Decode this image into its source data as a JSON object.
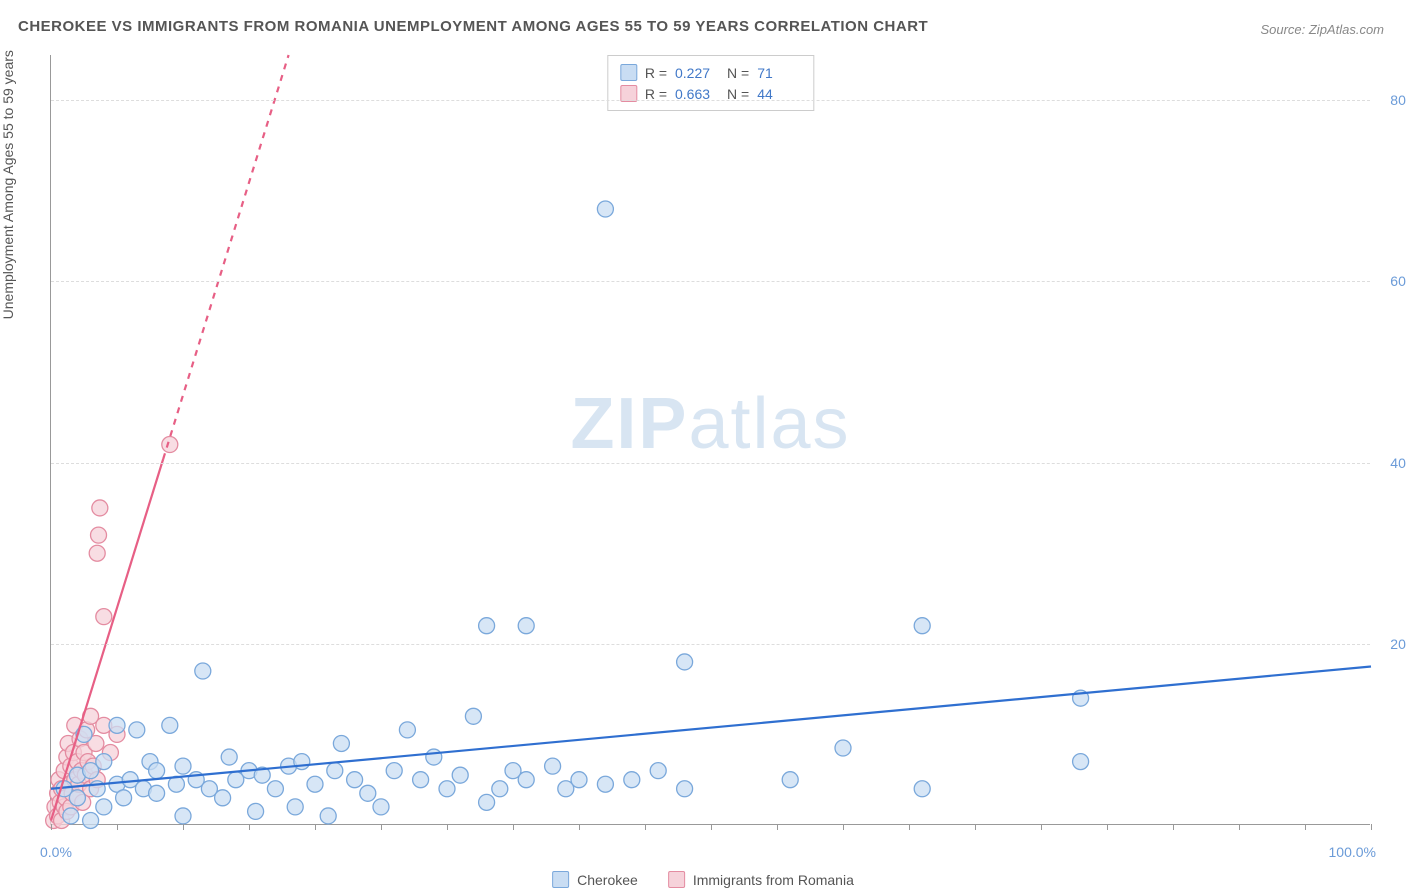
{
  "title": "CHEROKEE VS IMMIGRANTS FROM ROMANIA UNEMPLOYMENT AMONG AGES 55 TO 59 YEARS CORRELATION CHART",
  "source": "Source: ZipAtlas.com",
  "y_axis_label": "Unemployment Among Ages 55 to 59 years",
  "watermark_bold": "ZIP",
  "watermark_light": "atlas",
  "chart": {
    "type": "scatter",
    "xlim": [
      0,
      100
    ],
    "ylim": [
      0,
      85
    ],
    "x_ticks_minor_step": 5,
    "y_gridlines": [
      20,
      40,
      60,
      80
    ],
    "y_tick_labels": [
      "20.0%",
      "40.0%",
      "60.0%",
      "80.0%"
    ],
    "x_tick_labels": {
      "0": "0.0%",
      "100": "100.0%"
    },
    "grid_color": "#dddddd",
    "background_color": "#ffffff",
    "axis_color": "#999999",
    "tick_label_color": "#6b9bd8"
  },
  "series": [
    {
      "name": "Cherokee",
      "marker_color_fill": "#c9ddf3",
      "marker_color_stroke": "#7aa8db",
      "marker_radius": 8,
      "line_color": "#2f6fd0",
      "line_width": 2.2,
      "line_dash_after_x": 100,
      "trend": {
        "x1": 0,
        "y1": 4.0,
        "x2": 100,
        "y2": 17.5
      },
      "stats": {
        "R": "0.227",
        "N": "71"
      },
      "points": [
        [
          1,
          4
        ],
        [
          1.5,
          1
        ],
        [
          2,
          5.5
        ],
        [
          2,
          3
        ],
        [
          2.5,
          10
        ],
        [
          3,
          0.5
        ],
        [
          3,
          6
        ],
        [
          3.5,
          4
        ],
        [
          4,
          2
        ],
        [
          4,
          7
        ],
        [
          5,
          4.5
        ],
        [
          5,
          11
        ],
        [
          5.5,
          3
        ],
        [
          6,
          5
        ],
        [
          6.5,
          10.5
        ],
        [
          7,
          4
        ],
        [
          7.5,
          7
        ],
        [
          8,
          3.5
        ],
        [
          8,
          6
        ],
        [
          9,
          11
        ],
        [
          9.5,
          4.5
        ],
        [
          10,
          1
        ],
        [
          10,
          6.5
        ],
        [
          11,
          5
        ],
        [
          11.5,
          17
        ],
        [
          12,
          4
        ],
        [
          13,
          3
        ],
        [
          13.5,
          7.5
        ],
        [
          14,
          5
        ],
        [
          15,
          6
        ],
        [
          15.5,
          1.5
        ],
        [
          16,
          5.5
        ],
        [
          17,
          4
        ],
        [
          18,
          6.5
        ],
        [
          18.5,
          2
        ],
        [
          19,
          7
        ],
        [
          20,
          4.5
        ],
        [
          21,
          1
        ],
        [
          21.5,
          6
        ],
        [
          22,
          9
        ],
        [
          23,
          5
        ],
        [
          24,
          3.5
        ],
        [
          25,
          2
        ],
        [
          26,
          6
        ],
        [
          27,
          10.5
        ],
        [
          28,
          5
        ],
        [
          29,
          7.5
        ],
        [
          30,
          4
        ],
        [
          31,
          5.5
        ],
        [
          32,
          12
        ],
        [
          33,
          2.5
        ],
        [
          33,
          22
        ],
        [
          34,
          4
        ],
        [
          35,
          6
        ],
        [
          36,
          5
        ],
        [
          36,
          22
        ],
        [
          38,
          6.5
        ],
        [
          39,
          4
        ],
        [
          40,
          5
        ],
        [
          42,
          68
        ],
        [
          42,
          4.5
        ],
        [
          44,
          5
        ],
        [
          46,
          6
        ],
        [
          48,
          18
        ],
        [
          48,
          4
        ],
        [
          56,
          5
        ],
        [
          60,
          8.5
        ],
        [
          66,
          22
        ],
        [
          66,
          4
        ],
        [
          78,
          14
        ],
        [
          78,
          7
        ]
      ]
    },
    {
      "name": "Immigrants from Romania",
      "marker_color_fill": "#f6d2da",
      "marker_color_stroke": "#e48ca1",
      "marker_radius": 8,
      "line_color": "#e75f85",
      "line_width": 2.2,
      "line_dash_after_x": 8.5,
      "trend": {
        "x1": 0,
        "y1": 0.5,
        "x2": 18,
        "y2": 85
      },
      "stats": {
        "R": "0.663",
        "N": "44"
      },
      "points": [
        [
          0.2,
          0.5
        ],
        [
          0.3,
          2
        ],
        [
          0.5,
          1
        ],
        [
          0.5,
          3.5
        ],
        [
          0.6,
          5
        ],
        [
          0.7,
          2.5
        ],
        [
          0.8,
          0.5
        ],
        [
          0.8,
          4
        ],
        [
          1,
          6
        ],
        [
          1,
          2
        ],
        [
          1.1,
          3
        ],
        [
          1.2,
          7.5
        ],
        [
          1.2,
          1.5
        ],
        [
          1.3,
          9
        ],
        [
          1.4,
          4.5
        ],
        [
          1.5,
          2
        ],
        [
          1.5,
          6.5
        ],
        [
          1.6,
          3.5
        ],
        [
          1.7,
          8
        ],
        [
          1.8,
          5
        ],
        [
          1.8,
          11
        ],
        [
          2,
          3
        ],
        [
          2,
          7
        ],
        [
          2.1,
          4.5
        ],
        [
          2.2,
          9.5
        ],
        [
          2.3,
          6
        ],
        [
          2.4,
          2.5
        ],
        [
          2.5,
          8
        ],
        [
          2.6,
          5.5
        ],
        [
          2.7,
          10.5
        ],
        [
          2.8,
          7
        ],
        [
          3,
          4
        ],
        [
          3,
          12
        ],
        [
          3.2,
          6.5
        ],
        [
          3.4,
          9
        ],
        [
          3.5,
          5
        ],
        [
          3.5,
          30
        ],
        [
          3.6,
          32
        ],
        [
          3.7,
          35
        ],
        [
          4,
          11
        ],
        [
          4,
          23
        ],
        [
          4.5,
          8
        ],
        [
          5,
          10
        ],
        [
          9,
          42
        ]
      ]
    }
  ],
  "stats_box_labels": {
    "R": "R =",
    "N": "N ="
  },
  "legend": {
    "items": [
      "Cherokee",
      "Immigrants from Romania"
    ]
  }
}
